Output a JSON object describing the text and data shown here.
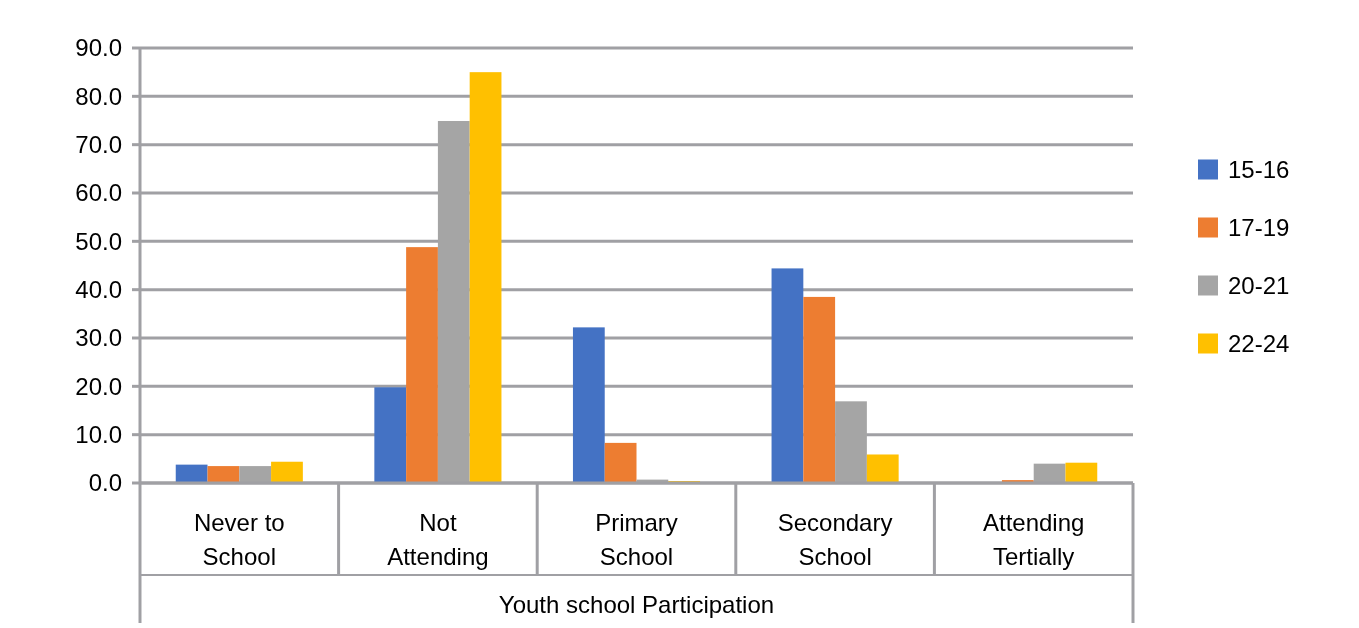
{
  "chart_data": {
    "type": "bar",
    "xlabel": "Youth school Participation",
    "categories": [
      "Never to School",
      "Not Attending",
      "Primary School",
      "Secondary School",
      "Attending Tertially"
    ],
    "series": [
      {
        "name": "15-16",
        "color": "#4472c4",
        "values": [
          3.8,
          19.8,
          32.2,
          44.4,
          null
        ]
      },
      {
        "name": "17-19",
        "color": "#ed7d31",
        "values": [
          3.5,
          48.8,
          8.3,
          38.5,
          0.6
        ]
      },
      {
        "name": "20-21",
        "color": "#a5a5a5",
        "values": [
          3.5,
          74.9,
          0.7,
          16.9,
          4.0
        ]
      },
      {
        "name": "22-24",
        "color": "#ffc000",
        "values": [
          4.4,
          85.0,
          0.4,
          5.9,
          4.2
        ]
      }
    ],
    "ylim": [
      0,
      90
    ],
    "yticks": [
      {
        "value": 0,
        "label": "0.0"
      },
      {
        "value": 10,
        "label": "10.0"
      },
      {
        "value": 20,
        "label": "20.0"
      },
      {
        "value": 30,
        "label": "30.0"
      },
      {
        "value": 40,
        "label": "40.0"
      },
      {
        "value": 50,
        "label": "50.0"
      },
      {
        "value": 60,
        "label": "60.0"
      },
      {
        "value": 70,
        "label": "70.0"
      },
      {
        "value": 80,
        "label": "80.0"
      },
      {
        "value": 90,
        "label": "90.0"
      }
    ],
    "grid": "y",
    "legend": "right"
  }
}
